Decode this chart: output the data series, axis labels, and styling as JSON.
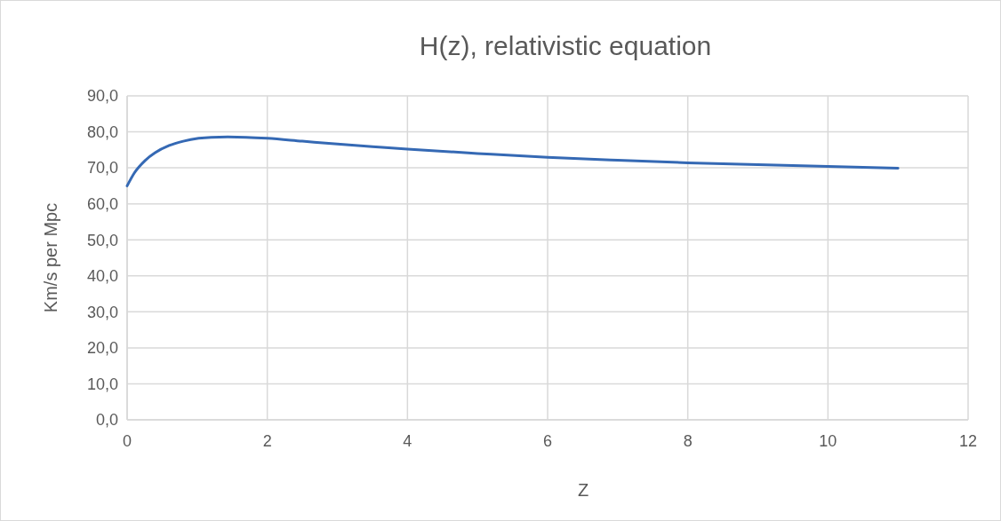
{
  "chart_data": {
    "type": "line",
    "title": "H(z), relativistic equation",
    "xlabel": "Z",
    "ylabel": "Km/s per Mpc",
    "x": [
      0,
      0.1,
      0.26,
      0.4,
      0.6,
      0.8,
      1.02,
      1.2,
      1.44,
      1.7,
      2,
      2.5,
      3,
      3.5,
      4,
      5,
      6,
      7,
      8,
      9,
      10,
      11
    ],
    "series": [
      {
        "color": "#3569b4",
        "values": [
          65.0,
          68.5,
          72.1,
          74.2,
          76.2,
          77.4,
          78.2,
          78.5,
          78.6,
          78.5,
          78.2,
          77.4,
          76.6,
          75.9,
          75.2,
          74.0,
          72.9,
          72.1,
          71.4,
          70.9,
          70.4,
          69.9
        ]
      }
    ],
    "xlim": [
      0,
      12
    ],
    "xticks": [
      0,
      2,
      4,
      6,
      8,
      10,
      12
    ],
    "ylim": [
      0,
      90
    ],
    "yticks": [
      {
        "value": 0,
        "label": "0,0"
      },
      {
        "value": 10,
        "label": "10,0"
      },
      {
        "value": 20,
        "label": "20,0"
      },
      {
        "value": 30,
        "label": "30,0"
      },
      {
        "value": 40,
        "label": "40,0"
      },
      {
        "value": 50,
        "label": "50,0"
      },
      {
        "value": 60,
        "label": "60,0"
      },
      {
        "value": 70,
        "label": "70,0"
      },
      {
        "value": 80,
        "label": "80,0"
      },
      {
        "value": 90,
        "label": "90,0"
      }
    ],
    "grid": true,
    "legend": false,
    "marker": "none",
    "line_style": "solid"
  }
}
